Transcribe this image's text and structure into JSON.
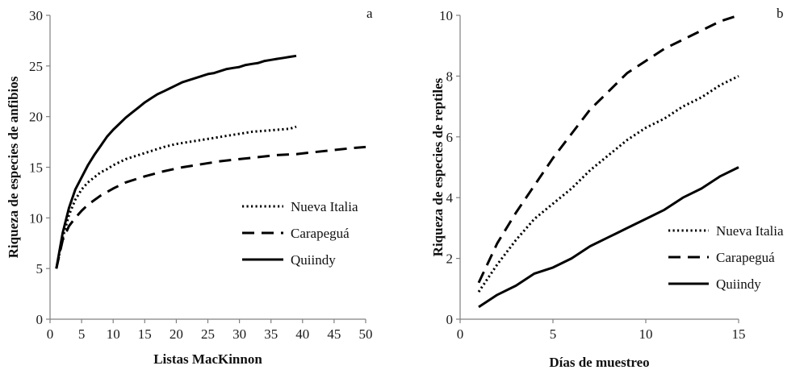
{
  "chart_data": [
    {
      "type": "line",
      "panel_label": "a",
      "xlabel": "Listas MacKinnon",
      "ylabel": "Riqueza de especies de anfibios",
      "xlim": [
        0,
        50
      ],
      "ylim": [
        0,
        30
      ],
      "xticks": [
        0,
        5,
        10,
        15,
        20,
        25,
        30,
        35,
        40,
        45,
        50
      ],
      "yticks": [
        0,
        5,
        10,
        15,
        20,
        25,
        30
      ],
      "grid": false,
      "legend_position": "right",
      "series": [
        {
          "name": "Nueva Italia",
          "style": "dotted",
          "x": [
            1,
            2,
            3,
            4,
            5,
            6,
            7,
            8,
            9,
            10,
            12,
            14,
            16,
            18,
            20,
            22,
            24,
            26,
            28,
            30,
            32,
            34,
            36,
            38,
            39
          ],
          "y": [
            5,
            8,
            10.3,
            11.8,
            12.8,
            13.5,
            14,
            14.5,
            14.8,
            15.2,
            15.8,
            16.2,
            16.6,
            17,
            17.3,
            17.5,
            17.7,
            17.9,
            18.1,
            18.3,
            18.5,
            18.6,
            18.7,
            18.8,
            19
          ]
        },
        {
          "name": "Carapeguá",
          "style": "dashed",
          "x": [
            1,
            2,
            3,
            4,
            5,
            6,
            8,
            10,
            12,
            15,
            18,
            21,
            24,
            27,
            30,
            33,
            36,
            39,
            42,
            45,
            48,
            50
          ],
          "y": [
            5,
            7.8,
            9.2,
            10,
            10.7,
            11.3,
            12.2,
            12.9,
            13.5,
            14.1,
            14.6,
            15,
            15.3,
            15.6,
            15.8,
            16,
            16.2,
            16.3,
            16.5,
            16.7,
            16.9,
            17
          ]
        },
        {
          "name": "Quiindy",
          "style": "solid",
          "x": [
            1,
            2,
            3,
            4,
            5,
            6,
            7,
            8,
            9,
            10,
            11,
            12,
            13,
            14,
            15,
            16,
            17,
            18,
            19,
            20,
            21,
            22,
            23,
            24,
            25,
            26,
            27,
            28,
            29,
            30,
            31,
            32,
            33,
            34,
            35,
            36,
            37,
            38,
            39
          ],
          "y": [
            5,
            8.5,
            11,
            12.8,
            14,
            15.2,
            16.2,
            17.1,
            18,
            18.7,
            19.3,
            19.9,
            20.4,
            20.9,
            21.4,
            21.8,
            22.2,
            22.5,
            22.8,
            23.1,
            23.4,
            23.6,
            23.8,
            24,
            24.2,
            24.3,
            24.5,
            24.7,
            24.8,
            24.9,
            25.1,
            25.2,
            25.3,
            25.5,
            25.6,
            25.7,
            25.8,
            25.9,
            26
          ]
        }
      ]
    },
    {
      "type": "line",
      "panel_label": "b",
      "xlabel": "Días de muestreo",
      "ylabel": "Riqueza de especies de reptiles",
      "xlim": [
        0,
        15
      ],
      "ylim": [
        0,
        10
      ],
      "xticks": [
        0,
        5,
        10,
        15
      ],
      "yticks": [
        0,
        2,
        4,
        6,
        8,
        10
      ],
      "grid": false,
      "legend_position": "bottom-right",
      "series": [
        {
          "name": "Nueva Italia",
          "style": "dotted",
          "x": [
            1,
            2,
            3,
            4,
            5,
            6,
            7,
            8,
            9,
            10,
            11,
            12,
            13,
            14,
            15
          ],
          "y": [
            0.9,
            1.8,
            2.6,
            3.3,
            3.8,
            4.3,
            4.9,
            5.4,
            5.9,
            6.3,
            6.6,
            7,
            7.3,
            7.7,
            8
          ]
        },
        {
          "name": "Carapeguá",
          "style": "dashed",
          "x": [
            1,
            2,
            3,
            4,
            5,
            6,
            7,
            8,
            9,
            10,
            11,
            12,
            13,
            14,
            15
          ],
          "y": [
            1.2,
            2.5,
            3.5,
            4.4,
            5.3,
            6.1,
            6.9,
            7.5,
            8.1,
            8.5,
            8.9,
            9.2,
            9.5,
            9.8,
            10
          ]
        },
        {
          "name": "Quiindy",
          "style": "solid",
          "x": [
            1,
            2,
            3,
            4,
            5,
            6,
            7,
            8,
            9,
            10,
            11,
            12,
            13,
            14,
            15
          ],
          "y": [
            0.4,
            0.8,
            1.1,
            1.5,
            1.7,
            2,
            2.4,
            2.7,
            3,
            3.3,
            3.6,
            4,
            4.3,
            4.7,
            5
          ]
        }
      ]
    }
  ]
}
